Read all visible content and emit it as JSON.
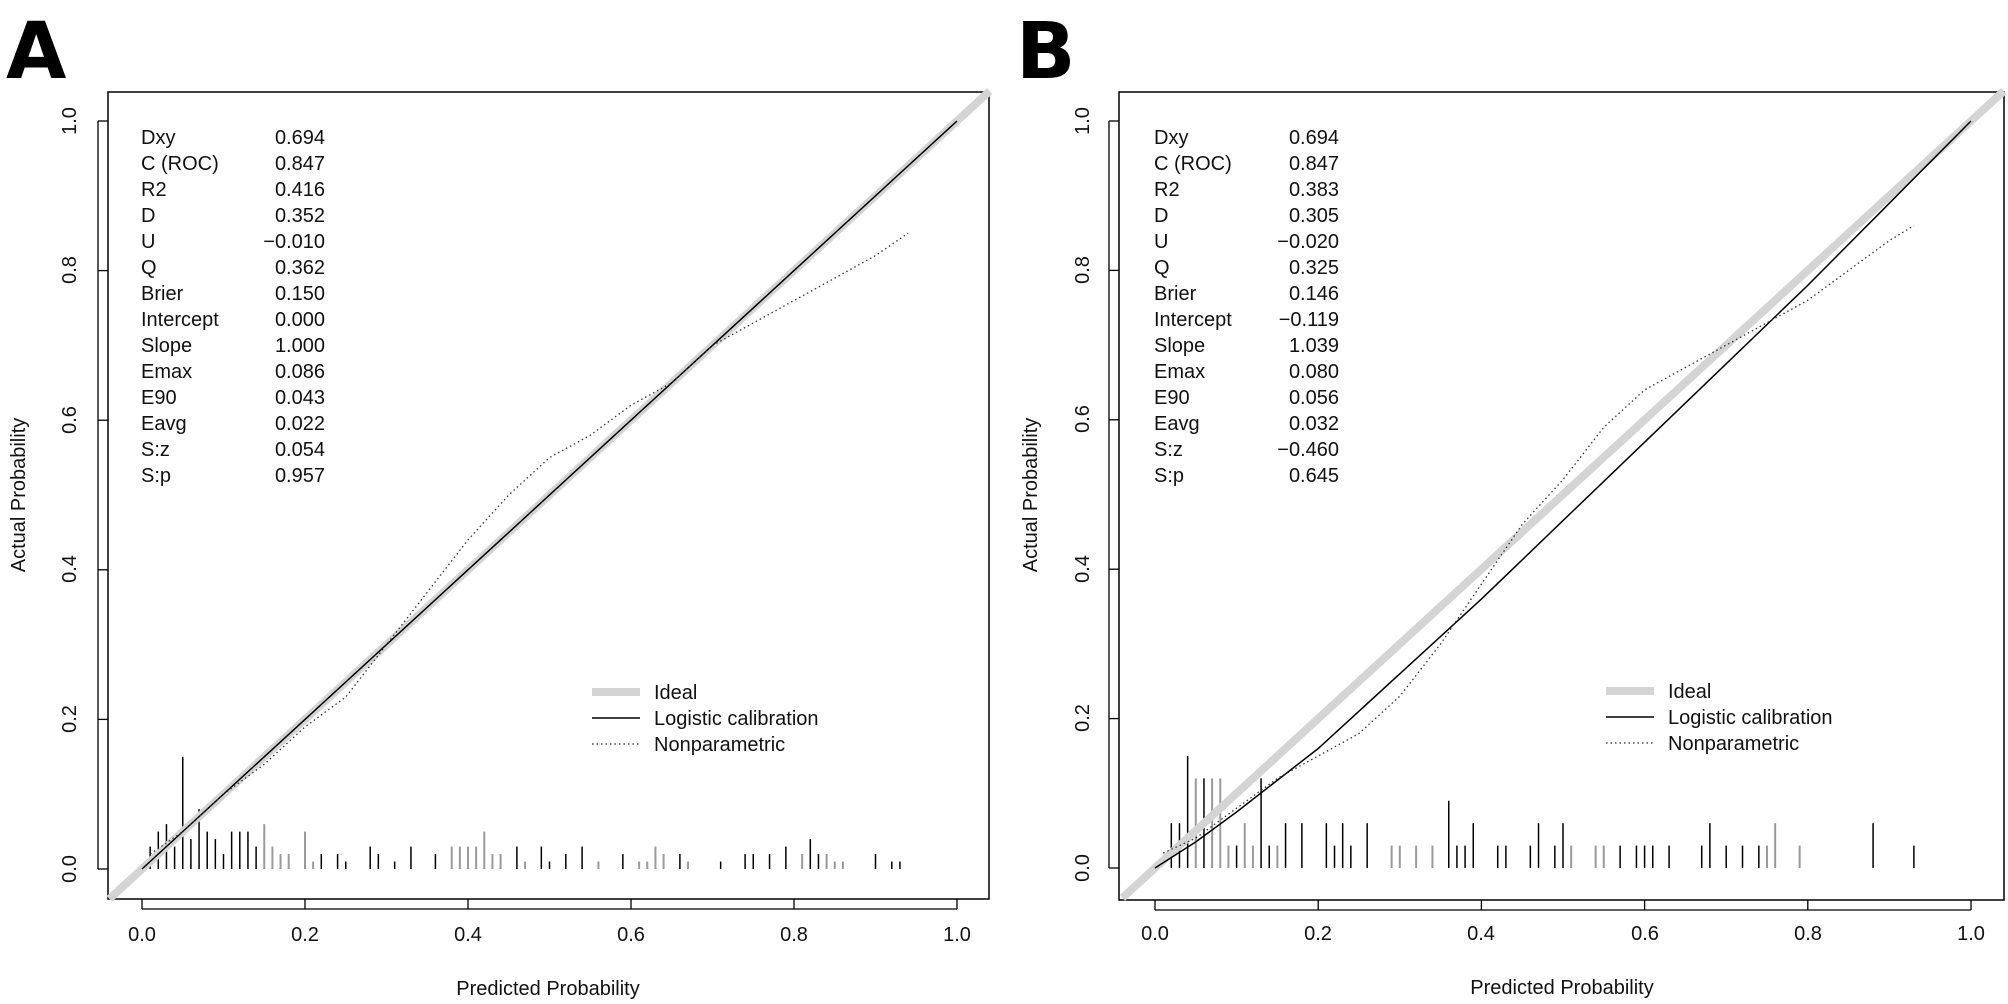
{
  "chart_data": [
    {
      "panel": "A",
      "type": "calibration",
      "xlabel": "Predicted Probability",
      "ylabel": "Actual Probability",
      "xlim": [
        -0.04,
        1.04
      ],
      "ylim": [
        -0.04,
        1.04
      ],
      "xticks": [
        "0.0",
        "0.2",
        "0.4",
        "0.6",
        "0.8",
        "1.0"
      ],
      "yticks": [
        "0.0",
        "0.2",
        "0.4",
        "0.6",
        "0.8",
        "1.0"
      ],
      "stats": [
        {
          "label": "Dxy",
          "value": "0.694"
        },
        {
          "label": "C (ROC)",
          "value": "0.847"
        },
        {
          "label": "R2",
          "value": "0.416"
        },
        {
          "label": "D",
          "value": "0.352"
        },
        {
          "label": "U",
          "value": "−0.010"
        },
        {
          "label": "Q",
          "value": "0.362"
        },
        {
          "label": "Brier",
          "value": "0.150"
        },
        {
          "label": "Intercept",
          "value": "0.000"
        },
        {
          "label": "Slope",
          "value": "1.000"
        },
        {
          "label": "Emax",
          "value": "0.086"
        },
        {
          "label": "E90",
          "value": "0.043"
        },
        {
          "label": "Eavg",
          "value": "0.022"
        },
        {
          "label": "S:z",
          "value": "0.054"
        },
        {
          "label": "S:p",
          "value": "0.957"
        }
      ],
      "legend": {
        "position": "bottom-right",
        "entries": [
          {
            "label": "Ideal",
            "style": "thick-gray"
          },
          {
            "label": "Logistic calibration",
            "style": "solid"
          },
          {
            "label": "Nonparametric",
            "style": "dotted"
          }
        ]
      },
      "series": [
        {
          "name": "Ideal",
          "x": [
            0,
            1
          ],
          "y": [
            0,
            1
          ]
        },
        {
          "name": "Logistic calibration",
          "x": [
            0,
            0.2,
            0.4,
            0.6,
            0.8,
            1.0
          ],
          "y": [
            0,
            0.2,
            0.4,
            0.6,
            0.8,
            1.0
          ]
        },
        {
          "name": "Nonparametric",
          "x": [
            0.01,
            0.05,
            0.1,
            0.15,
            0.2,
            0.25,
            0.3,
            0.35,
            0.4,
            0.45,
            0.5,
            0.55,
            0.6,
            0.65,
            0.7,
            0.75,
            0.8,
            0.85,
            0.9,
            0.94
          ],
          "y": [
            0.02,
            0.05,
            0.1,
            0.14,
            0.19,
            0.23,
            0.3,
            0.37,
            0.44,
            0.5,
            0.55,
            0.58,
            0.62,
            0.65,
            0.7,
            0.73,
            0.76,
            0.79,
            0.82,
            0.85
          ]
        }
      ],
      "rug_top": [
        {
          "x": 0.01,
          "h": 0.03
        },
        {
          "x": 0.02,
          "h": 0.05
        },
        {
          "x": 0.03,
          "h": 0.06
        },
        {
          "x": 0.04,
          "h": 0.03
        },
        {
          "x": 0.05,
          "h": 0.15
        },
        {
          "x": 0.06,
          "h": 0.04
        },
        {
          "x": 0.07,
          "h": 0.08
        },
        {
          "x": 0.08,
          "h": 0.05
        },
        {
          "x": 0.09,
          "h": 0.04
        },
        {
          "x": 0.1,
          "h": 0.02
        },
        {
          "x": 0.11,
          "h": 0.05
        },
        {
          "x": 0.12,
          "h": 0.05
        },
        {
          "x": 0.13,
          "h": 0.05
        },
        {
          "x": 0.14,
          "h": 0.03
        },
        {
          "x": 0.22,
          "h": 0.02
        },
        {
          "x": 0.24,
          "h": 0.02
        },
        {
          "x": 0.25,
          "h": 0.01
        },
        {
          "x": 0.28,
          "h": 0.03
        },
        {
          "x": 0.29,
          "h": 0.02
        },
        {
          "x": 0.31,
          "h": 0.01
        },
        {
          "x": 0.33,
          "h": 0.03
        },
        {
          "x": 0.36,
          "h": 0.02
        },
        {
          "x": 0.46,
          "h": 0.03
        },
        {
          "x": 0.49,
          "h": 0.03
        },
        {
          "x": 0.5,
          "h": 0.01
        },
        {
          "x": 0.52,
          "h": 0.02
        },
        {
          "x": 0.54,
          "h": 0.03
        },
        {
          "x": 0.59,
          "h": 0.02
        },
        {
          "x": 0.66,
          "h": 0.02
        },
        {
          "x": 0.71,
          "h": 0.01
        },
        {
          "x": 0.74,
          "h": 0.02
        },
        {
          "x": 0.75,
          "h": 0.02
        },
        {
          "x": 0.77,
          "h": 0.02
        },
        {
          "x": 0.79,
          "h": 0.03
        },
        {
          "x": 0.82,
          "h": 0.04
        },
        {
          "x": 0.83,
          "h": 0.02
        },
        {
          "x": 0.9,
          "h": 0.02
        },
        {
          "x": 0.92,
          "h": 0.01
        },
        {
          "x": 0.93,
          "h": 0.01
        }
      ],
      "rug_bottom": [
        {
          "x": 0.15,
          "h": 0.06
        },
        {
          "x": 0.16,
          "h": 0.03
        },
        {
          "x": 0.17,
          "h": 0.02
        },
        {
          "x": 0.18,
          "h": 0.02
        },
        {
          "x": 0.2,
          "h": 0.05
        },
        {
          "x": 0.21,
          "h": 0.01
        },
        {
          "x": 0.38,
          "h": 0.03
        },
        {
          "x": 0.39,
          "h": 0.03
        },
        {
          "x": 0.4,
          "h": 0.03
        },
        {
          "x": 0.41,
          "h": 0.03
        },
        {
          "x": 0.42,
          "h": 0.05
        },
        {
          "x": 0.43,
          "h": 0.02
        },
        {
          "x": 0.44,
          "h": 0.02
        },
        {
          "x": 0.47,
          "h": 0.01
        },
        {
          "x": 0.56,
          "h": 0.01
        },
        {
          "x": 0.61,
          "h": 0.01
        },
        {
          "x": 0.62,
          "h": 0.01
        },
        {
          "x": 0.63,
          "h": 0.03
        },
        {
          "x": 0.64,
          "h": 0.02
        },
        {
          "x": 0.67,
          "h": 0.01
        },
        {
          "x": 0.81,
          "h": 0.02
        },
        {
          "x": 0.84,
          "h": 0.02
        },
        {
          "x": 0.85,
          "h": 0.01
        },
        {
          "x": 0.86,
          "h": 0.01
        }
      ]
    },
    {
      "panel": "B",
      "type": "calibration",
      "xlabel": "Predicted Probability",
      "ylabel": "Actual Probability",
      "xlim": [
        -0.04,
        1.04
      ],
      "ylim": [
        -0.04,
        1.04
      ],
      "xticks": [
        "0.0",
        "0.2",
        "0.4",
        "0.6",
        "0.8",
        "1.0"
      ],
      "yticks": [
        "0.0",
        "0.2",
        "0.4",
        "0.6",
        "0.8",
        "1.0"
      ],
      "stats": [
        {
          "label": "Dxy",
          "value": "0.694"
        },
        {
          "label": "C (ROC)",
          "value": "0.847"
        },
        {
          "label": "R2",
          "value": "0.383"
        },
        {
          "label": "D",
          "value": "0.305"
        },
        {
          "label": "U",
          "value": "−0.020"
        },
        {
          "label": "Q",
          "value": "0.325"
        },
        {
          "label": "Brier",
          "value": "0.146"
        },
        {
          "label": "Intercept",
          "value": "−0.119"
        },
        {
          "label": "Slope",
          "value": "1.039"
        },
        {
          "label": "Emax",
          "value": "0.080"
        },
        {
          "label": "E90",
          "value": "0.056"
        },
        {
          "label": "Eavg",
          "value": "0.032"
        },
        {
          "label": "S:z",
          "value": "−0.460"
        },
        {
          "label": "S:p",
          "value": "0.645"
        }
      ],
      "legend": {
        "position": "bottom-right",
        "entries": [
          {
            "label": "Ideal",
            "style": "thick-gray"
          },
          {
            "label": "Logistic calibration",
            "style": "solid"
          },
          {
            "label": "Nonparametric",
            "style": "dotted"
          }
        ]
      },
      "series": [
        {
          "name": "Ideal",
          "x": [
            0,
            1
          ],
          "y": [
            0,
            1
          ]
        },
        {
          "name": "Logistic calibration",
          "x": [
            0,
            0.05,
            0.1,
            0.2,
            0.3,
            0.4,
            0.5,
            0.6,
            0.7,
            0.8,
            0.9,
            1.0
          ],
          "y": [
            0,
            0.035,
            0.075,
            0.16,
            0.26,
            0.36,
            0.465,
            0.57,
            0.675,
            0.78,
            0.89,
            1.0
          ]
        },
        {
          "name": "Nonparametric",
          "x": [
            0.01,
            0.05,
            0.1,
            0.15,
            0.2,
            0.25,
            0.3,
            0.35,
            0.4,
            0.45,
            0.5,
            0.55,
            0.57,
            0.6,
            0.65,
            0.7,
            0.75,
            0.8,
            0.85,
            0.9,
            0.93
          ],
          "y": [
            0.02,
            0.04,
            0.08,
            0.12,
            0.15,
            0.18,
            0.23,
            0.3,
            0.38,
            0.46,
            0.52,
            0.59,
            0.61,
            0.64,
            0.67,
            0.7,
            0.73,
            0.76,
            0.8,
            0.84,
            0.86
          ]
        }
      ],
      "rug_top": [
        {
          "x": 0.02,
          "h": 0.06
        },
        {
          "x": 0.03,
          "h": 0.06
        },
        {
          "x": 0.04,
          "h": 0.15
        },
        {
          "x": 0.06,
          "h": 0.12
        },
        {
          "x": 0.1,
          "h": 0.03
        },
        {
          "x": 0.13,
          "h": 0.12
        },
        {
          "x": 0.14,
          "h": 0.03
        },
        {
          "x": 0.16,
          "h": 0.06
        },
        {
          "x": 0.18,
          "h": 0.06
        },
        {
          "x": 0.21,
          "h": 0.06
        },
        {
          "x": 0.22,
          "h": 0.03
        },
        {
          "x": 0.23,
          "h": 0.06
        },
        {
          "x": 0.24,
          "h": 0.03
        },
        {
          "x": 0.26,
          "h": 0.06
        },
        {
          "x": 0.36,
          "h": 0.09
        },
        {
          "x": 0.37,
          "h": 0.03
        },
        {
          "x": 0.38,
          "h": 0.03
        },
        {
          "x": 0.39,
          "h": 0.06
        },
        {
          "x": 0.42,
          "h": 0.03
        },
        {
          "x": 0.43,
          "h": 0.03
        },
        {
          "x": 0.46,
          "h": 0.03
        },
        {
          "x": 0.47,
          "h": 0.06
        },
        {
          "x": 0.49,
          "h": 0.03
        },
        {
          "x": 0.5,
          "h": 0.06
        },
        {
          "x": 0.57,
          "h": 0.03
        },
        {
          "x": 0.59,
          "h": 0.03
        },
        {
          "x": 0.6,
          "h": 0.03
        },
        {
          "x": 0.61,
          "h": 0.03
        },
        {
          "x": 0.63,
          "h": 0.03
        },
        {
          "x": 0.67,
          "h": 0.03
        },
        {
          "x": 0.68,
          "h": 0.06
        },
        {
          "x": 0.7,
          "h": 0.03
        },
        {
          "x": 0.72,
          "h": 0.03
        },
        {
          "x": 0.74,
          "h": 0.03
        },
        {
          "x": 0.88,
          "h": 0.06
        },
        {
          "x": 0.93,
          "h": 0.03
        }
      ],
      "rug_bottom": [
        {
          "x": 0.05,
          "h": 0.12
        },
        {
          "x": 0.07,
          "h": 0.12
        },
        {
          "x": 0.08,
          "h": 0.12
        },
        {
          "x": 0.09,
          "h": 0.03
        },
        {
          "x": 0.11,
          "h": 0.06
        },
        {
          "x": 0.12,
          "h": 0.03
        },
        {
          "x": 0.15,
          "h": 0.03
        },
        {
          "x": 0.29,
          "h": 0.03
        },
        {
          "x": 0.3,
          "h": 0.03
        },
        {
          "x": 0.32,
          "h": 0.03
        },
        {
          "x": 0.34,
          "h": 0.03
        },
        {
          "x": 0.51,
          "h": 0.03
        },
        {
          "x": 0.54,
          "h": 0.03
        },
        {
          "x": 0.55,
          "h": 0.03
        },
        {
          "x": 0.75,
          "h": 0.03
        },
        {
          "x": 0.76,
          "h": 0.06
        },
        {
          "x": 0.79,
          "h": 0.03
        }
      ]
    }
  ]
}
